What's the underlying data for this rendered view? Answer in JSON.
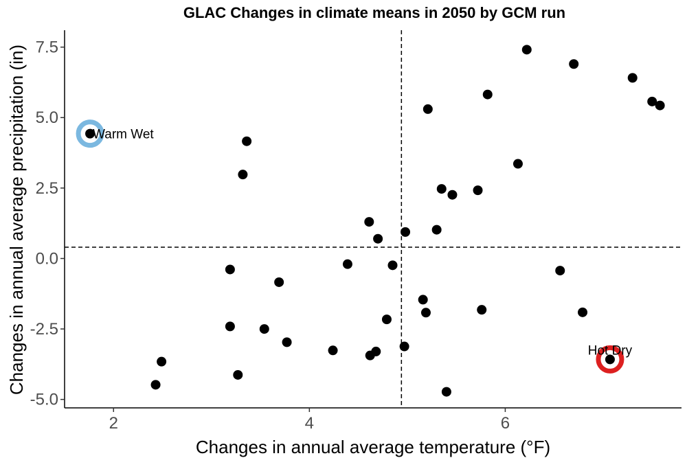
{
  "chart_data": {
    "type": "scatter",
    "title": "GLAC Changes in climate means in 2050 by GCM run",
    "xlabel": "Changes in annual average temperature (°F)",
    "ylabel": "Changes in annual average precipitation (in)",
    "xlim": [
      1.5,
      7.8
    ],
    "ylim": [
      -5.3,
      8.1
    ],
    "x_ticks": [
      2,
      4,
      6
    ],
    "x_tick_labels": [
      "2",
      "4",
      "6"
    ],
    "y_ticks": [
      -5.0,
      -2.5,
      0.0,
      2.5,
      5.0,
      7.5
    ],
    "y_tick_labels": [
      "-5.0",
      "-2.5",
      "0.0",
      "2.5",
      "5.0",
      "7.5"
    ],
    "grid": false,
    "reference_lines": {
      "x": 4.94,
      "y": 0.4
    },
    "point_color": "#000000",
    "points": [
      {
        "x": 1.76,
        "y": 4.43
      },
      {
        "x": 2.43,
        "y": -4.48
      },
      {
        "x": 2.49,
        "y": -3.66
      },
      {
        "x": 3.19,
        "y": -0.39
      },
      {
        "x": 3.19,
        "y": -2.41
      },
      {
        "x": 3.27,
        "y": -4.13
      },
      {
        "x": 3.32,
        "y": 2.98
      },
      {
        "x": 3.36,
        "y": 4.16
      },
      {
        "x": 3.54,
        "y": -2.5
      },
      {
        "x": 3.69,
        "y": -0.84
      },
      {
        "x": 3.77,
        "y": -2.97
      },
      {
        "x": 4.24,
        "y": -3.26
      },
      {
        "x": 4.39,
        "y": -0.2
      },
      {
        "x": 4.61,
        "y": 1.3
      },
      {
        "x": 4.62,
        "y": -3.44
      },
      {
        "x": 4.68,
        "y": -3.3
      },
      {
        "x": 4.7,
        "y": 0.7
      },
      {
        "x": 4.79,
        "y": -2.16
      },
      {
        "x": 4.85,
        "y": -0.24
      },
      {
        "x": 4.97,
        "y": -3.12
      },
      {
        "x": 4.98,
        "y": 0.94
      },
      {
        "x": 5.16,
        "y": -1.46
      },
      {
        "x": 5.19,
        "y": -1.92
      },
      {
        "x": 5.21,
        "y": 5.3
      },
      {
        "x": 5.3,
        "y": 1.02
      },
      {
        "x": 5.35,
        "y": 2.47
      },
      {
        "x": 5.4,
        "y": -4.73
      },
      {
        "x": 5.46,
        "y": 2.26
      },
      {
        "x": 5.72,
        "y": 2.42
      },
      {
        "x": 5.76,
        "y": -1.82
      },
      {
        "x": 5.82,
        "y": 5.82
      },
      {
        "x": 6.13,
        "y": 3.36
      },
      {
        "x": 6.22,
        "y": 7.41
      },
      {
        "x": 6.56,
        "y": -0.43
      },
      {
        "x": 6.7,
        "y": 6.9
      },
      {
        "x": 6.79,
        "y": -1.91
      },
      {
        "x": 7.07,
        "y": -3.58
      },
      {
        "x": 7.3,
        "y": 6.41
      },
      {
        "x": 7.5,
        "y": 5.57
      },
      {
        "x": 7.58,
        "y": 5.43
      }
    ],
    "highlights": [
      {
        "label": "Warm Wet",
        "x": 1.76,
        "y": 4.43,
        "color": "#7bb8e0",
        "dot_color": "#000000"
      },
      {
        "label": "Hot Dry",
        "x": 7.07,
        "y": -3.58,
        "color": "#dd2020",
        "dot_color": "#000000"
      }
    ]
  }
}
